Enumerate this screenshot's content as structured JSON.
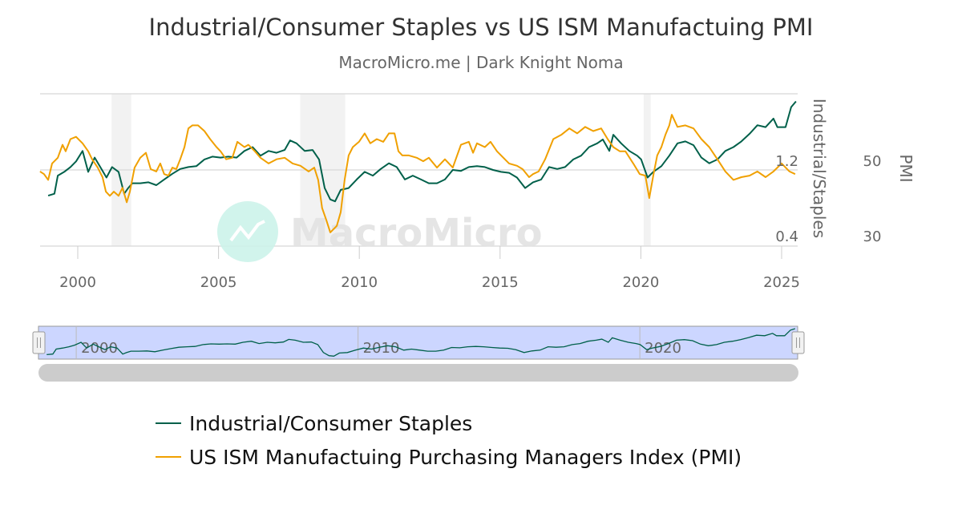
{
  "chart_data": {
    "type": "line",
    "title": "Industrial/Consumer Staples vs US ISM Manufactuing PMI",
    "subtitle": "MacroMicro.me | Dark Knight Noma",
    "watermark": "MacroMicro",
    "x_ticks": [
      "2000",
      "2005",
      "2010",
      "2015",
      "2020",
      "2025"
    ],
    "xlim": [
      1998.66,
      2025.6
    ],
    "grid": true,
    "legend_position": "bottom",
    "recession_shading": [
      [
        2001.2,
        2001.9
      ],
      [
        2007.9,
        2009.5
      ],
      [
        2020.1,
        2020.35
      ]
    ],
    "y_axes": [
      {
        "id": "ratio",
        "title": "Industrial/Staples",
        "ylim": [
          0.4,
          2.0
        ],
        "ticks": [
          "1.2",
          "0.4"
        ]
      },
      {
        "id": "pmi",
        "title": "PMI",
        "ylim": [
          30,
          70
        ],
        "ticks": [
          "50",
          "30"
        ]
      }
    ],
    "series": [
      {
        "name": "Industrial/Consumer Staples",
        "axis": "ratio",
        "color": "#00604a",
        "points": [
          [
            1998.95,
            0.93
          ],
          [
            1999.17,
            0.95
          ],
          [
            1999.29,
            1.14
          ],
          [
            1999.52,
            1.18
          ],
          [
            1999.74,
            1.23
          ],
          [
            1999.94,
            1.29
          ],
          [
            2000.17,
            1.4
          ],
          [
            2000.37,
            1.18
          ],
          [
            2000.6,
            1.33
          ],
          [
            2000.8,
            1.23
          ],
          [
            2001.02,
            1.12
          ],
          [
            2001.22,
            1.23
          ],
          [
            2001.45,
            1.18
          ],
          [
            2001.65,
            0.95
          ],
          [
            2001.79,
            1.01
          ],
          [
            2001.94,
            1.06
          ],
          [
            2002.22,
            1.06
          ],
          [
            2002.51,
            1.07
          ],
          [
            2002.79,
            1.04
          ],
          [
            2003.07,
            1.1
          ],
          [
            2003.36,
            1.16
          ],
          [
            2003.64,
            1.21
          ],
          [
            2003.93,
            1.23
          ],
          [
            2004.21,
            1.24
          ],
          [
            2004.5,
            1.31
          ],
          [
            2004.78,
            1.34
          ],
          [
            2005.07,
            1.33
          ],
          [
            2005.35,
            1.34
          ],
          [
            2005.64,
            1.33
          ],
          [
            2005.92,
            1.4
          ],
          [
            2006.21,
            1.44
          ],
          [
            2006.49,
            1.35
          ],
          [
            2006.78,
            1.4
          ],
          [
            2007.06,
            1.38
          ],
          [
            2007.35,
            1.41
          ],
          [
            2007.54,
            1.51
          ],
          [
            2007.77,
            1.48
          ],
          [
            2008.06,
            1.4
          ],
          [
            2008.34,
            1.41
          ],
          [
            2008.57,
            1.31
          ],
          [
            2008.77,
            1.01
          ],
          [
            2008.97,
            0.89
          ],
          [
            2009.14,
            0.87
          ],
          [
            2009.34,
            0.99
          ],
          [
            2009.62,
            1.01
          ],
          [
            2009.91,
            1.1
          ],
          [
            2010.19,
            1.18
          ],
          [
            2010.48,
            1.14
          ],
          [
            2010.76,
            1.21
          ],
          [
            2011.05,
            1.27
          ],
          [
            2011.33,
            1.23
          ],
          [
            2011.62,
            1.1
          ],
          [
            2011.9,
            1.14
          ],
          [
            2012.19,
            1.1
          ],
          [
            2012.47,
            1.06
          ],
          [
            2012.76,
            1.06
          ],
          [
            2013.04,
            1.1
          ],
          [
            2013.32,
            1.2
          ],
          [
            2013.61,
            1.19
          ],
          [
            2013.89,
            1.23
          ],
          [
            2014.18,
            1.24
          ],
          [
            2014.46,
            1.23
          ],
          [
            2014.75,
            1.2
          ],
          [
            2015.03,
            1.18
          ],
          [
            2015.32,
            1.17
          ],
          [
            2015.6,
            1.12
          ],
          [
            2015.89,
            1.01
          ],
          [
            2016.17,
            1.07
          ],
          [
            2016.46,
            1.1
          ],
          [
            2016.74,
            1.23
          ],
          [
            2017.03,
            1.21
          ],
          [
            2017.31,
            1.23
          ],
          [
            2017.6,
            1.31
          ],
          [
            2017.88,
            1.35
          ],
          [
            2018.16,
            1.44
          ],
          [
            2018.45,
            1.48
          ],
          [
            2018.65,
            1.52
          ],
          [
            2018.88,
            1.4
          ],
          [
            2019.02,
            1.57
          ],
          [
            2019.3,
            1.48
          ],
          [
            2019.59,
            1.4
          ],
          [
            2019.87,
            1.35
          ],
          [
            2020.01,
            1.31
          ],
          [
            2020.24,
            1.12
          ],
          [
            2020.44,
            1.18
          ],
          [
            2020.73,
            1.24
          ],
          [
            2021.01,
            1.35
          ],
          [
            2021.3,
            1.48
          ],
          [
            2021.58,
            1.5
          ],
          [
            2021.87,
            1.46
          ],
          [
            2022.15,
            1.33
          ],
          [
            2022.43,
            1.27
          ],
          [
            2022.72,
            1.31
          ],
          [
            2023.0,
            1.4
          ],
          [
            2023.29,
            1.44
          ],
          [
            2023.57,
            1.5
          ],
          [
            2023.86,
            1.58
          ],
          [
            2024.14,
            1.67
          ],
          [
            2024.43,
            1.65
          ],
          [
            2024.71,
            1.74
          ],
          [
            2024.85,
            1.65
          ],
          [
            2025.14,
            1.65
          ],
          [
            2025.34,
            1.86
          ],
          [
            2025.51,
            1.92
          ]
        ]
      },
      {
        "name": "US ISM Manufactuing Purchasing Managers Index (PMI)",
        "axis": "pmi",
        "color": "#f0a000",
        "points": [
          [
            1998.66,
            49.6
          ],
          [
            1998.8,
            48.9
          ],
          [
            1998.95,
            47.4
          ],
          [
            1999.09,
            51.7
          ],
          [
            1999.29,
            53.2
          ],
          [
            1999.46,
            56.6
          ],
          [
            1999.57,
            54.9
          ],
          [
            1999.74,
            58.1
          ],
          [
            1999.94,
            58.7
          ],
          [
            2000.17,
            57.0
          ],
          [
            2000.37,
            54.9
          ],
          [
            2000.51,
            52.8
          ],
          [
            2000.71,
            50.6
          ],
          [
            2000.88,
            48.1
          ],
          [
            2001.0,
            44.3
          ],
          [
            2001.14,
            43.2
          ],
          [
            2001.28,
            44.3
          ],
          [
            2001.45,
            43.2
          ],
          [
            2001.59,
            45.3
          ],
          [
            2001.74,
            41.5
          ],
          [
            2001.85,
            44.3
          ],
          [
            2002.02,
            50.6
          ],
          [
            2002.22,
            53.2
          ],
          [
            2002.42,
            54.5
          ],
          [
            2002.59,
            50.2
          ],
          [
            2002.79,
            49.6
          ],
          [
            2002.93,
            51.7
          ],
          [
            2003.07,
            48.9
          ],
          [
            2003.22,
            48.5
          ],
          [
            2003.36,
            50.6
          ],
          [
            2003.5,
            50.2
          ],
          [
            2003.64,
            52.8
          ],
          [
            2003.79,
            56.0
          ],
          [
            2003.93,
            60.9
          ],
          [
            2004.07,
            61.7
          ],
          [
            2004.27,
            61.7
          ],
          [
            2004.5,
            60.2
          ],
          [
            2004.7,
            58.1
          ],
          [
            2004.93,
            56.0
          ],
          [
            2005.07,
            54.9
          ],
          [
            2005.27,
            52.8
          ],
          [
            2005.49,
            53.2
          ],
          [
            2005.67,
            57.4
          ],
          [
            2005.92,
            56.0
          ],
          [
            2006.06,
            56.6
          ],
          [
            2006.29,
            54.9
          ],
          [
            2006.49,
            53.2
          ],
          [
            2006.78,
            51.7
          ],
          [
            2007.06,
            52.8
          ],
          [
            2007.35,
            53.2
          ],
          [
            2007.63,
            51.7
          ],
          [
            2007.91,
            51.1
          ],
          [
            2008.2,
            49.6
          ],
          [
            2008.4,
            50.6
          ],
          [
            2008.54,
            47.4
          ],
          [
            2008.68,
            40.0
          ],
          [
            2008.83,
            36.8
          ],
          [
            2008.97,
            33.6
          ],
          [
            2009.2,
            35.3
          ],
          [
            2009.34,
            38.9
          ],
          [
            2009.48,
            47.4
          ],
          [
            2009.62,
            53.8
          ],
          [
            2009.77,
            56.0
          ],
          [
            2009.99,
            57.4
          ],
          [
            2010.19,
            59.6
          ],
          [
            2010.39,
            57.0
          ],
          [
            2010.62,
            58.1
          ],
          [
            2010.85,
            57.4
          ],
          [
            2011.05,
            59.6
          ],
          [
            2011.25,
            59.6
          ],
          [
            2011.39,
            54.9
          ],
          [
            2011.53,
            53.8
          ],
          [
            2011.76,
            53.8
          ],
          [
            2012.04,
            53.2
          ],
          [
            2012.27,
            52.3
          ],
          [
            2012.47,
            53.2
          ],
          [
            2012.76,
            50.6
          ],
          [
            2013.04,
            52.8
          ],
          [
            2013.32,
            50.6
          ],
          [
            2013.61,
            56.6
          ],
          [
            2013.89,
            57.4
          ],
          [
            2014.04,
            54.5
          ],
          [
            2014.18,
            57.0
          ],
          [
            2014.46,
            56.0
          ],
          [
            2014.66,
            57.4
          ],
          [
            2014.89,
            54.9
          ],
          [
            2015.17,
            52.8
          ],
          [
            2015.32,
            51.7
          ],
          [
            2015.6,
            51.1
          ],
          [
            2015.8,
            50.2
          ],
          [
            2016.03,
            48.1
          ],
          [
            2016.17,
            48.9
          ],
          [
            2016.37,
            49.6
          ],
          [
            2016.6,
            52.8
          ],
          [
            2016.89,
            58.1
          ],
          [
            2017.17,
            59.2
          ],
          [
            2017.46,
            60.9
          ],
          [
            2017.74,
            59.6
          ],
          [
            2018.02,
            61.3
          ],
          [
            2018.31,
            60.2
          ],
          [
            2018.59,
            60.9
          ],
          [
            2018.82,
            58.1
          ],
          [
            2019.02,
            56.0
          ],
          [
            2019.25,
            54.9
          ],
          [
            2019.45,
            54.9
          ],
          [
            2019.73,
            51.7
          ],
          [
            2019.96,
            48.9
          ],
          [
            2020.16,
            48.5
          ],
          [
            2020.3,
            42.6
          ],
          [
            2020.44,
            48.5
          ],
          [
            2020.58,
            53.8
          ],
          [
            2020.73,
            56.0
          ],
          [
            2020.87,
            59.2
          ],
          [
            2021.01,
            61.7
          ],
          [
            2021.1,
            64.5
          ],
          [
            2021.3,
            61.3
          ],
          [
            2021.58,
            61.7
          ],
          [
            2021.87,
            60.9
          ],
          [
            2022.15,
            58.1
          ],
          [
            2022.43,
            56.0
          ],
          [
            2022.72,
            52.8
          ],
          [
            2023.0,
            49.6
          ],
          [
            2023.29,
            47.4
          ],
          [
            2023.57,
            48.1
          ],
          [
            2023.86,
            48.5
          ],
          [
            2024.14,
            49.6
          ],
          [
            2024.43,
            48.1
          ],
          [
            2024.71,
            49.6
          ],
          [
            2025.0,
            51.7
          ],
          [
            2025.28,
            49.6
          ],
          [
            2025.48,
            48.9
          ]
        ]
      }
    ],
    "navigator": {
      "x_ticks": [
        "2000",
        "2010",
        "2020"
      ]
    }
  }
}
